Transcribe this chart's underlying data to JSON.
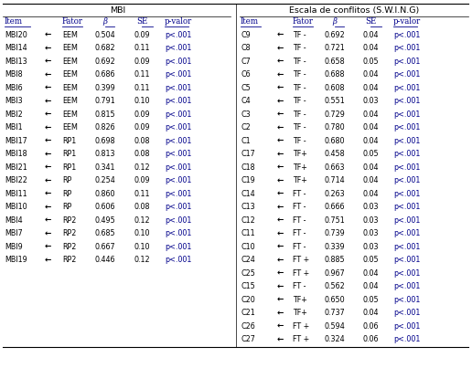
{
  "mbi_header": "MBI",
  "swing_header": "Escala de conflitos (S.W.I.N.G)",
  "mbi_rows": [
    [
      "MBI20",
      "←",
      "EEM",
      "0.504",
      "0.09",
      "p<.001"
    ],
    [
      "MBI14",
      "←",
      "EEM",
      "0.682",
      "0.11",
      "p<.001"
    ],
    [
      "MBI13",
      "←",
      "EEM",
      "0.692",
      "0.09",
      "p<.001"
    ],
    [
      "MBI8",
      "←",
      "EEM",
      "0.686",
      "0.11",
      "p<.001"
    ],
    [
      "MBI6",
      "←",
      "EEM",
      "0.399",
      "0.11",
      "p<.001"
    ],
    [
      "MBI3",
      "←",
      "EEM",
      "0.791",
      "0.10",
      "p<.001"
    ],
    [
      "MBI2",
      "←",
      "EEM",
      "0.815",
      "0.09",
      "p<.001"
    ],
    [
      "MBI1",
      "←",
      "EEM",
      "0.826",
      "0.09",
      "p<.001"
    ],
    [
      "MBI17",
      "←",
      "RP1",
      "0.698",
      "0.08",
      "p<.001"
    ],
    [
      "MBI18",
      "←",
      "RP1",
      "0.813",
      "0.08",
      "p<.001"
    ],
    [
      "MBI21",
      "←",
      "RP1",
      "0.341",
      "0.12",
      "p<.001"
    ],
    [
      "MBI22",
      "←",
      "RP",
      "0.254",
      "0.09",
      "p<.001"
    ],
    [
      "MBI11",
      "←",
      "RP",
      "0.860",
      "0.11",
      "p<.001"
    ],
    [
      "MBI10",
      "←",
      "RP",
      "0.606",
      "0.08",
      "p<.001"
    ],
    [
      "MBI4",
      "←",
      "RP2",
      "0.495",
      "0.12",
      "p<.001"
    ],
    [
      "MBI7",
      "←",
      "RP2",
      "0.685",
      "0.10",
      "p<.001"
    ],
    [
      "MBI9",
      "←",
      "RP2",
      "0.667",
      "0.10",
      "p<.001"
    ],
    [
      "MBI19",
      "←",
      "RP2",
      "0.446",
      "0.12",
      "p<.001"
    ]
  ],
  "swing_rows": [
    [
      "C9",
      "←",
      "TF -",
      "0.692",
      "0.04",
      "p<.001"
    ],
    [
      "C8",
      "←",
      "TF -",
      "0.721",
      "0.04",
      "p<.001"
    ],
    [
      "C7",
      "←",
      "TF -",
      "0.658",
      "0.05",
      "p<.001"
    ],
    [
      "C6",
      "←",
      "TF -",
      "0.688",
      "0.04",
      "p<.001"
    ],
    [
      "C5",
      "←",
      "TF -",
      "0.608",
      "0.04",
      "p<.001"
    ],
    [
      "C4",
      "←",
      "TF -",
      "0.551",
      "0.03",
      "p<.001"
    ],
    [
      "C3",
      "←",
      "TF -",
      "0.729",
      "0.04",
      "p<.001"
    ],
    [
      "C2",
      "←",
      "TF -",
      "0.780",
      "0.04",
      "p<.001"
    ],
    [
      "C1",
      "←",
      "TF -",
      "0.680",
      "0.04",
      "p<.001"
    ],
    [
      "C17",
      "←",
      "TF+",
      "0.458",
      "0.05",
      "p<.001"
    ],
    [
      "C18",
      "←",
      "TF+",
      "0.663",
      "0.04",
      "p<.001"
    ],
    [
      "C19",
      "←",
      "TF+",
      "0.714",
      "0.04",
      "p<.001"
    ],
    [
      "C14",
      "←",
      "FT -",
      "0.263",
      "0.04",
      "p<.001"
    ],
    [
      "C13",
      "←",
      "FT -",
      "0.666",
      "0.03",
      "p<.001"
    ],
    [
      "C12",
      "←",
      "FT -",
      "0.751",
      "0.03",
      "p<.001"
    ],
    [
      "C11",
      "←",
      "FT -",
      "0.739",
      "0.03",
      "p<.001"
    ],
    [
      "C10",
      "←",
      "FT -",
      "0.339",
      "0.03",
      "p<.001"
    ],
    [
      "C24",
      "←",
      "FT +",
      "0.885",
      "0.05",
      "p<.001"
    ],
    [
      "C25",
      "←",
      "FT +",
      "0.967",
      "0.04",
      "p<.001"
    ],
    [
      "C15",
      "←",
      "FT -",
      "0.562",
      "0.04",
      "p<.001"
    ],
    [
      "C20",
      "←",
      "TF+",
      "0.650",
      "0.05",
      "p<.001"
    ],
    [
      "C21",
      "←",
      "TF+",
      "0.737",
      "0.04",
      "p<.001"
    ],
    [
      "C26",
      "←",
      "FT +",
      "0.594",
      "0.06",
      "p<.001"
    ],
    [
      "C27",
      "←",
      "FT +",
      "0.324",
      "0.06",
      "p<.001"
    ]
  ],
  "bg_color": "#ffffff",
  "text_color": "#000000",
  "header_color": "#00008B",
  "font_size": 5.8,
  "header_font_size": 6.2,
  "title_font_size": 6.8
}
